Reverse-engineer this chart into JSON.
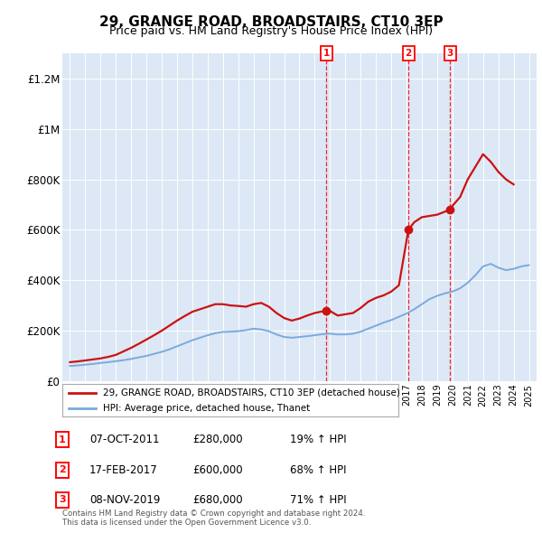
{
  "title": "29, GRANGE ROAD, BROADSTAIRS, CT10 3EP",
  "subtitle": "Price paid vs. HM Land Registry's House Price Index (HPI)",
  "title_fontsize": 11,
  "subtitle_fontsize": 9,
  "background_color": "#ffffff",
  "plot_bg_color": "#dce8f5",
  "ylabel_ticks": [
    "£0",
    "£200K",
    "£400K",
    "£600K",
    "£800K",
    "£1M",
    "£1.2M"
  ],
  "ytick_values": [
    0,
    200000,
    400000,
    600000,
    800000,
    1000000,
    1200000
  ],
  "ylim": [
    0,
    1300000
  ],
  "xlim_start": 1994.5,
  "xlim_end": 2025.5,
  "hpi_color": "#7aaadd",
  "price_color": "#cc1111",
  "legend_label_price": "29, GRANGE ROAD, BROADSTAIRS, CT10 3EP (detached house)",
  "legend_label_hpi": "HPI: Average price, detached house, Thanet",
  "sale_dates": [
    2011.77,
    2017.12,
    2019.85
  ],
  "sale_prices": [
    280000,
    600000,
    680000
  ],
  "sale_labels": [
    "1",
    "2",
    "3"
  ],
  "sale_date_strings": [
    "07-OCT-2011",
    "17-FEB-2017",
    "08-NOV-2019"
  ],
  "sale_price_strings": [
    "£280,000",
    "£600,000",
    "£680,000"
  ],
  "sale_hpi_strings": [
    "19% ↑ HPI",
    "68% ↑ HPI",
    "71% ↑ HPI"
  ],
  "footnote": "Contains HM Land Registry data © Crown copyright and database right 2024.\nThis data is licensed under the Open Government Licence v3.0.",
  "hpi_years": [
    1995,
    1995.5,
    1996,
    1996.5,
    1997,
    1997.5,
    1998,
    1998.5,
    1999,
    1999.5,
    2000,
    2000.5,
    2001,
    2001.5,
    2002,
    2002.5,
    2003,
    2003.5,
    2004,
    2004.5,
    2005,
    2005.5,
    2006,
    2006.5,
    2007,
    2007.5,
    2008,
    2008.5,
    2009,
    2009.5,
    2010,
    2010.5,
    2011,
    2011.5,
    2012,
    2012.5,
    2013,
    2013.5,
    2014,
    2014.5,
    2015,
    2015.5,
    2016,
    2016.5,
    2017,
    2017.5,
    2018,
    2018.5,
    2019,
    2019.5,
    2020,
    2020.5,
    2021,
    2021.5,
    2022,
    2022.5,
    2023,
    2023.5,
    2024,
    2024.5,
    2025
  ],
  "hpi_values": [
    60000,
    62000,
    65000,
    68000,
    72000,
    75000,
    79000,
    83000,
    88000,
    94000,
    100000,
    108000,
    116000,
    126000,
    138000,
    150000,
    162000,
    172000,
    182000,
    190000,
    195000,
    196000,
    198000,
    202000,
    208000,
    205000,
    198000,
    185000,
    175000,
    172000,
    175000,
    178000,
    182000,
    186000,
    188000,
    185000,
    185000,
    188000,
    196000,
    208000,
    220000,
    232000,
    242000,
    255000,
    268000,
    285000,
    305000,
    325000,
    338000,
    348000,
    355000,
    368000,
    390000,
    420000,
    455000,
    465000,
    450000,
    440000,
    445000,
    455000,
    460000
  ],
  "price_years": [
    1995.0,
    1995.5,
    1996.0,
    1996.5,
    1997.0,
    1997.5,
    1998.0,
    1998.5,
    1999.0,
    1999.5,
    2000.0,
    2000.5,
    2001.0,
    2001.5,
    2002.0,
    2002.5,
    2003.0,
    2003.5,
    2004.0,
    2004.5,
    2005.0,
    2005.5,
    2006.0,
    2006.5,
    2007.0,
    2007.5,
    2008.0,
    2008.5,
    2009.0,
    2009.5,
    2010.0,
    2010.5,
    2011.0,
    2011.77,
    2012.0,
    2012.5,
    2013.0,
    2013.5,
    2014.0,
    2014.5,
    2015.0,
    2015.5,
    2016.0,
    2016.5,
    2017.12,
    2017.5,
    2018.0,
    2018.5,
    2019.0,
    2019.85,
    2020.0,
    2020.5,
    2021.0,
    2021.5,
    2022.0,
    2022.5,
    2023.0,
    2023.5,
    2024.0
  ],
  "price_values": [
    75000,
    78000,
    82000,
    86000,
    90000,
    96000,
    104000,
    118000,
    132000,
    148000,
    165000,
    182000,
    200000,
    220000,
    240000,
    258000,
    275000,
    285000,
    295000,
    305000,
    305000,
    300000,
    298000,
    295000,
    305000,
    310000,
    295000,
    270000,
    250000,
    240000,
    248000,
    260000,
    270000,
    280000,
    278000,
    260000,
    265000,
    270000,
    290000,
    315000,
    330000,
    340000,
    355000,
    380000,
    600000,
    630000,
    650000,
    655000,
    660000,
    680000,
    695000,
    730000,
    800000,
    850000,
    900000,
    870000,
    830000,
    800000,
    780000
  ]
}
